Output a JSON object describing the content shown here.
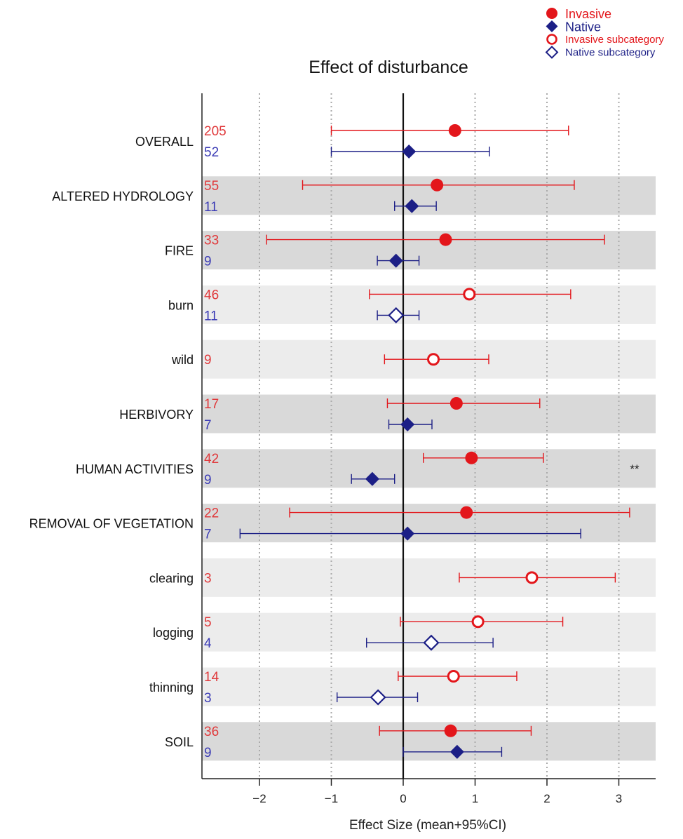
{
  "chart_data": {
    "type": "forest",
    "title": "Effect of disturbance",
    "xlabel": "Effect Size (mean+95%CI)",
    "xlim": [
      -2.8,
      3.5
    ],
    "xticks": [
      -2,
      -1,
      0,
      1,
      2,
      3
    ],
    "xtick_labels": [
      "−2",
      "−1",
      "0",
      "1",
      "2",
      "3"
    ],
    "grid": "vertical-dotted",
    "legend_position": "top-right",
    "colors": {
      "invasive": "#e3161b",
      "native": "#1c1f86",
      "invasive_count_text": "#e0393b",
      "native_count_text": "#3b3bb5",
      "band_dark": "#d9d9d9",
      "band_light": "#ececec",
      "grid": "#aaaaaa"
    },
    "legend": [
      {
        "label": "Invasive",
        "marker": "filled-circle",
        "color": "#e3161b"
      },
      {
        "label": "Native",
        "marker": "filled-diamond",
        "color": "#1c1f86"
      },
      {
        "label": "Invasive subcategory",
        "marker": "open-circle",
        "color": "#e3161b"
      },
      {
        "label": "Native subcategory",
        "marker": "open-diamond",
        "color": "#1c1f86"
      }
    ],
    "rows": [
      {
        "label": "OVERALL",
        "band": "none",
        "invasive": {
          "n": "205",
          "mean": 0.72,
          "lo": -1.0,
          "hi": 2.3,
          "sub": false
        },
        "native": {
          "n": "52",
          "mean": 0.08,
          "lo": -1.0,
          "hi": 1.2,
          "sub": false
        }
      },
      {
        "label": "ALTERED HYDROLOGY",
        "band": "dark",
        "invasive": {
          "n": "55",
          "mean": 0.47,
          "lo": -1.4,
          "hi": 2.38,
          "sub": false
        },
        "native": {
          "n": "11",
          "mean": 0.12,
          "lo": -0.12,
          "hi": 0.46,
          "sub": false
        }
      },
      {
        "label": "FIRE",
        "band": "dark",
        "invasive": {
          "n": "33",
          "mean": 0.59,
          "lo": -1.9,
          "hi": 2.8,
          "sub": false
        },
        "native": {
          "n": "9",
          "mean": -0.1,
          "lo": -0.36,
          "hi": 0.22,
          "sub": false
        }
      },
      {
        "label": "burn",
        "band": "light",
        "invasive": {
          "n": "46",
          "mean": 0.92,
          "lo": -0.47,
          "hi": 2.33,
          "sub": true
        },
        "native": {
          "n": "11",
          "mean": -0.1,
          "lo": -0.36,
          "hi": 0.22,
          "sub": true
        }
      },
      {
        "label": "wild",
        "band": "light",
        "invasive": {
          "n": "9",
          "mean": 0.42,
          "lo": -0.26,
          "hi": 1.19,
          "sub": true
        },
        "native": null
      },
      {
        "label": "HERBIVORY",
        "band": "dark",
        "invasive": {
          "n": "17",
          "mean": 0.74,
          "lo": -0.22,
          "hi": 1.9,
          "sub": false
        },
        "native": {
          "n": "7",
          "mean": 0.06,
          "lo": -0.2,
          "hi": 0.4,
          "sub": false
        }
      },
      {
        "label": "HUMAN ACTIVITIES",
        "band": "dark",
        "invasive": {
          "n": "42",
          "mean": 0.95,
          "lo": 0.28,
          "hi": 1.95,
          "sub": false
        },
        "native": {
          "n": "9",
          "mean": -0.43,
          "lo": -0.72,
          "hi": -0.12,
          "sub": false
        },
        "annotation": "**"
      },
      {
        "label": "REMOVAL OF VEGETATION",
        "band": "dark",
        "invasive": {
          "n": "22",
          "mean": 0.88,
          "lo": -1.58,
          "hi": 3.15,
          "sub": false
        },
        "native": {
          "n": "7",
          "mean": 0.06,
          "lo": -2.27,
          "hi": 2.47,
          "sub": false
        }
      },
      {
        "label": "clearing",
        "band": "light",
        "invasive": {
          "n": "3",
          "mean": 1.79,
          "lo": 0.78,
          "hi": 2.95,
          "sub": true
        },
        "native": null
      },
      {
        "label": "logging",
        "band": "light",
        "invasive": {
          "n": "5",
          "mean": 1.04,
          "lo": -0.04,
          "hi": 2.22,
          "sub": true
        },
        "native": {
          "n": "4",
          "mean": 0.39,
          "lo": -0.51,
          "hi": 1.25,
          "sub": true
        }
      },
      {
        "label": "thinning",
        "band": "light",
        "invasive": {
          "n": "14",
          "mean": 0.7,
          "lo": -0.07,
          "hi": 1.58,
          "sub": true
        },
        "native": {
          "n": "3",
          "mean": -0.35,
          "lo": -0.92,
          "hi": 0.2,
          "sub": true
        }
      },
      {
        "label": "SOIL",
        "band": "dark",
        "invasive": {
          "n": "36",
          "mean": 0.66,
          "lo": -0.33,
          "hi": 1.78,
          "sub": false
        },
        "native": {
          "n": "9",
          "mean": 0.75,
          "lo": 0.0,
          "hi": 1.37,
          "sub": false
        }
      }
    ]
  }
}
